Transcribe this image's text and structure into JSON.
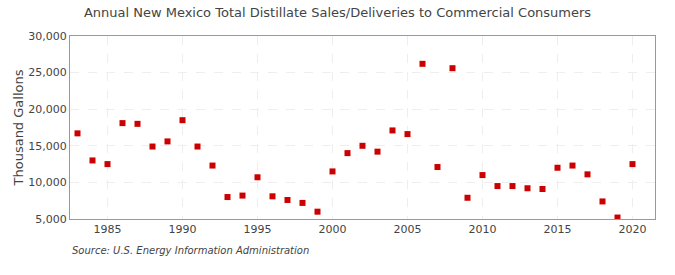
{
  "chart_data": {
    "type": "scatter",
    "title": "Annual New Mexico Total Distillate Sales/Deliveries to Commercial Consumers",
    "ylabel": "Thousand Gallons",
    "annotations": [
      "Source: U.S. Energy Information Administration"
    ],
    "x": [
      1983,
      1984,
      1985,
      1986,
      1987,
      1988,
      1989,
      1990,
      1991,
      1992,
      1993,
      1994,
      1995,
      1996,
      1997,
      1998,
      1999,
      2000,
      2001,
      2002,
      2003,
      2004,
      2005,
      2006,
      2007,
      2008,
      2009,
      2010,
      2011,
      2012,
      2013,
      2014,
      2015,
      2016,
      2017,
      2018,
      2019,
      2020
    ],
    "values": [
      16700,
      13000,
      12500,
      18100,
      18000,
      14900,
      15600,
      18500,
      14900,
      12300,
      8000,
      8200,
      10700,
      8100,
      7600,
      7200,
      6000,
      11500,
      14000,
      15000,
      14200,
      17100,
      16600,
      26200,
      12100,
      25600,
      7900,
      11000,
      9500,
      9500,
      9200,
      9100,
      12000,
      12300,
      11100,
      7400,
      5200,
      12500
    ],
    "color": "#cc0000",
    "marker": "square",
    "xlim": [
      1982.5,
      2021.5
    ],
    "xticks": [
      1985,
      1990,
      1995,
      2000,
      2005,
      2010,
      2015,
      2020
    ],
    "ylim": [
      5000,
      30000
    ],
    "yticks": [
      {
        "value": 5000,
        "label": "5,000"
      },
      {
        "value": 10000,
        "label": "10,000"
      },
      {
        "value": 15000,
        "label": "15,000"
      },
      {
        "value": 20000,
        "label": "20,000"
      },
      {
        "value": 25000,
        "label": "25,000"
      },
      {
        "value": 30000,
        "label": "30,000"
      }
    ],
    "grid": true
  }
}
